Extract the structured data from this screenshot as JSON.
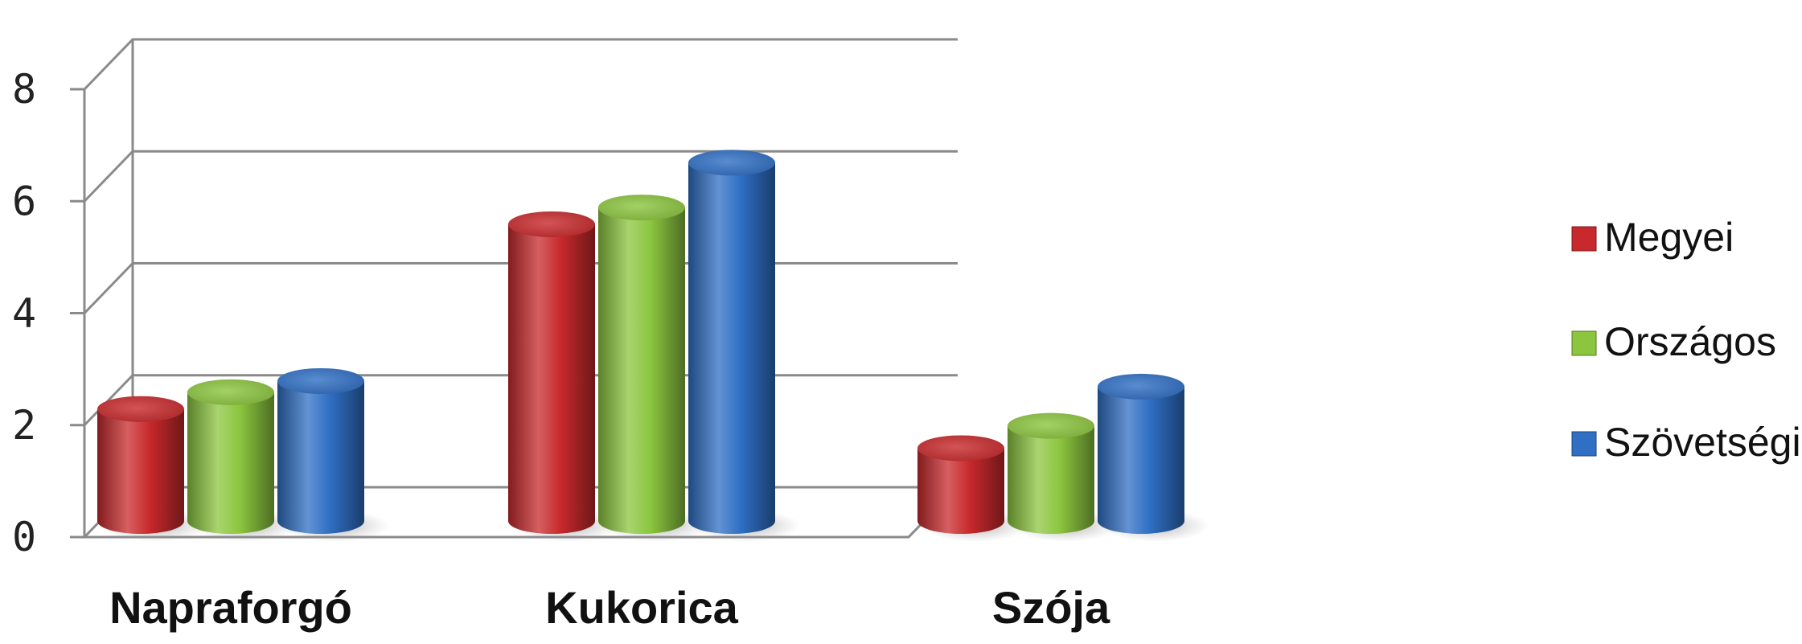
{
  "chart_data": {
    "type": "bar",
    "categories": [
      "Napraforgó",
      "Kukorica",
      "Szója"
    ],
    "series": [
      {
        "name": "Megyei",
        "values": [
          2.0,
          5.3,
          1.3
        ],
        "color": "#c8292c"
      },
      {
        "name": "Országos",
        "values": [
          2.3,
          5.6,
          1.7
        ],
        "color": "#8cc63f"
      },
      {
        "name": "Szövetségi",
        "values": [
          2.5,
          6.4,
          2.4
        ],
        "color": "#2f6fc4"
      }
    ],
    "ylim": [
      0,
      8
    ],
    "yticks": [
      "0",
      "2",
      "4",
      "6",
      "8"
    ],
    "grid": true,
    "legend_position": "right",
    "style": "3d-cylinder"
  }
}
